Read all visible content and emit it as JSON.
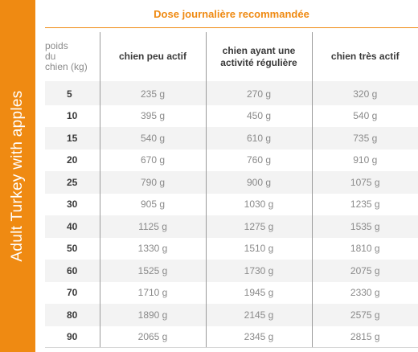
{
  "sidebar": {
    "label": "Adult Turkey with apples"
  },
  "table": {
    "title": "Dose journalière recommandée",
    "weight_header": {
      "line1": "poids",
      "line2": "du",
      "line3": "chien (kg)"
    },
    "columns": [
      {
        "line1": "chien peu actif",
        "line2": ""
      },
      {
        "line1": "chien ayant une",
        "line2": "activité régulière"
      },
      {
        "line1": "chien très actif",
        "line2": ""
      }
    ],
    "rows": [
      {
        "weight": "5",
        "low": "235 g",
        "regular": "270 g",
        "high": "320 g"
      },
      {
        "weight": "10",
        "low": "395 g",
        "regular": "450 g",
        "high": "540 g"
      },
      {
        "weight": "15",
        "low": "540 g",
        "regular": "610 g",
        "high": "735 g"
      },
      {
        "weight": "20",
        "low": "670 g",
        "regular": "760 g",
        "high": "910 g"
      },
      {
        "weight": "25",
        "low": "790 g",
        "regular": "900 g",
        "high": "1075 g"
      },
      {
        "weight": "30",
        "low": "905 g",
        "regular": "1030 g",
        "high": "1235 g"
      },
      {
        "weight": "40",
        "low": "1125 g",
        "regular": "1275 g",
        "high": "1535 g"
      },
      {
        "weight": "50",
        "low": "1330 g",
        "regular": "1510 g",
        "high": "1810 g"
      },
      {
        "weight": "60",
        "low": "1525 g",
        "regular": "1730 g",
        "high": "2075 g"
      },
      {
        "weight": "70",
        "low": "1710 g",
        "regular": "1945 g",
        "high": "2330 g"
      },
      {
        "weight": "80",
        "low": "1890 g",
        "regular": "2145 g",
        "high": "2575 g"
      },
      {
        "weight": "90",
        "low": "2065 g",
        "regular": "2345 g",
        "high": "2815 g"
      }
    ]
  },
  "colors": {
    "accent": "#ef8a12",
    "row_shade": "#f3f3f3",
    "text_dark": "#3a3a3a",
    "text_light": "#8a8a8a"
  }
}
